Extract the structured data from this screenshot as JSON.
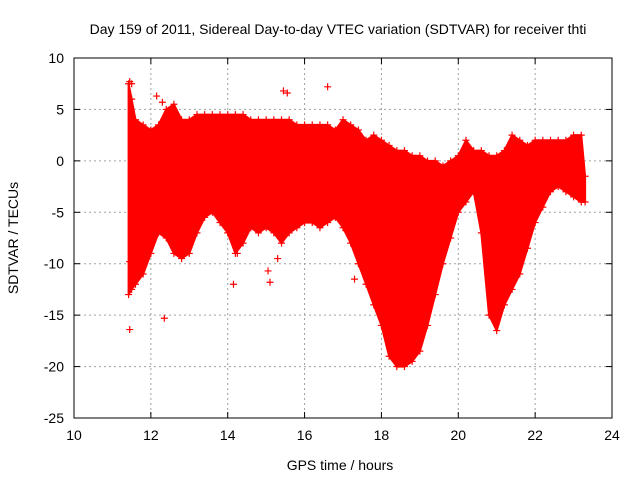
{
  "chart_data": {
    "type": "scatter",
    "title": "Day 159 of 2011, Sidereal Day-to-day VTEC variation (SDTVAR) for receiver thti",
    "xlabel": "GPS time / hours",
    "ylabel": "SDTVAR / TECUs",
    "xlim": [
      10,
      24
    ],
    "ylim": [
      -25,
      10
    ],
    "xticks": [
      10,
      12,
      14,
      16,
      18,
      20,
      22,
      24
    ],
    "yticks": [
      -25,
      -20,
      -15,
      -10,
      -5,
      0,
      5,
      10
    ],
    "grid": true,
    "marker": "+",
    "color": "#ff0000",
    "series": [
      {
        "name": "SDTVAR",
        "band_x": [
          11.42,
          11.5,
          11.6,
          11.8,
          12.0,
          12.2,
          12.4,
          12.6,
          12.8,
          13.0,
          13.2,
          13.4,
          13.6,
          13.8,
          14.0,
          14.2,
          14.4,
          14.6,
          14.8,
          15.0,
          15.2,
          15.4,
          15.6,
          15.8,
          16.0,
          16.2,
          16.4,
          16.6,
          16.8,
          17.0,
          17.2,
          17.4,
          17.6,
          17.8,
          18.0,
          18.2,
          18.4,
          18.6,
          18.8,
          19.0,
          19.2,
          19.4,
          19.6,
          19.8,
          20.0,
          20.2,
          20.4,
          20.6,
          20.8,
          21.0,
          21.2,
          21.4,
          21.6,
          21.8,
          22.0,
          22.2,
          22.4,
          22.6,
          22.8,
          23.0,
          23.2,
          23.3
        ],
        "band_upper": [
          7.5,
          6.0,
          4.0,
          3.5,
          3.0,
          3.5,
          5.0,
          5.5,
          4.0,
          4.0,
          4.5,
          4.5,
          4.5,
          4.5,
          4.5,
          4.5,
          4.5,
          4.0,
          4.0,
          4.0,
          4.0,
          4.0,
          4.0,
          3.5,
          3.5,
          3.5,
          3.5,
          3.5,
          3.0,
          4.0,
          3.5,
          3.0,
          2.0,
          2.5,
          2.0,
          1.5,
          1.0,
          1.0,
          0.5,
          0.5,
          0.0,
          0.0,
          -0.5,
          0.0,
          0.5,
          2.0,
          1.0,
          1.0,
          0.5,
          0.5,
          1.0,
          2.5,
          2.0,
          1.5,
          2.0,
          2.0,
          2.0,
          2.0,
          2.0,
          2.5,
          2.5,
          -1.5
        ],
        "band_lower": [
          -13.0,
          -12.5,
          -12.0,
          -11.0,
          -9.0,
          -7.0,
          -7.5,
          -9.0,
          -9.5,
          -9.0,
          -7.0,
          -5.5,
          -5.0,
          -6.0,
          -7.0,
          -9.0,
          -8.0,
          -6.5,
          -7.0,
          -6.5,
          -7.0,
          -8.0,
          -7.0,
          -6.5,
          -6.0,
          -6.0,
          -6.5,
          -6.0,
          -5.5,
          -6.5,
          -8.0,
          -10.0,
          -12.0,
          -14.0,
          -16.0,
          -19.0,
          -20.0,
          -20.0,
          -19.5,
          -18.5,
          -16.0,
          -13.0,
          -10.0,
          -7.5,
          -5.0,
          -4.0,
          -3.0,
          -7.0,
          -15.0,
          -16.5,
          -14.0,
          -12.5,
          -11.0,
          -8.5,
          -6.0,
          -4.5,
          -3.0,
          -2.5,
          -3.0,
          -3.5,
          -4.0,
          -4.0
        ],
        "outliers": [
          [
            11.45,
            7.7
          ],
          [
            11.5,
            7.5
          ],
          [
            11.45,
            -16.4
          ],
          [
            12.35,
            -15.3
          ],
          [
            12.15,
            6.3
          ],
          [
            12.3,
            5.7
          ],
          [
            14.15,
            -12.0
          ],
          [
            14.25,
            -9.0
          ],
          [
            15.05,
            -10.7
          ],
          [
            15.1,
            -11.8
          ],
          [
            15.3,
            -9.5
          ],
          [
            15.45,
            6.8
          ],
          [
            15.55,
            6.6
          ],
          [
            16.6,
            7.2
          ],
          [
            17.3,
            -11.5
          ],
          [
            20.85,
            -7.6
          ],
          [
            21.1,
            -7.6
          ],
          [
            11.45,
            -9.8
          ]
        ]
      }
    ]
  }
}
